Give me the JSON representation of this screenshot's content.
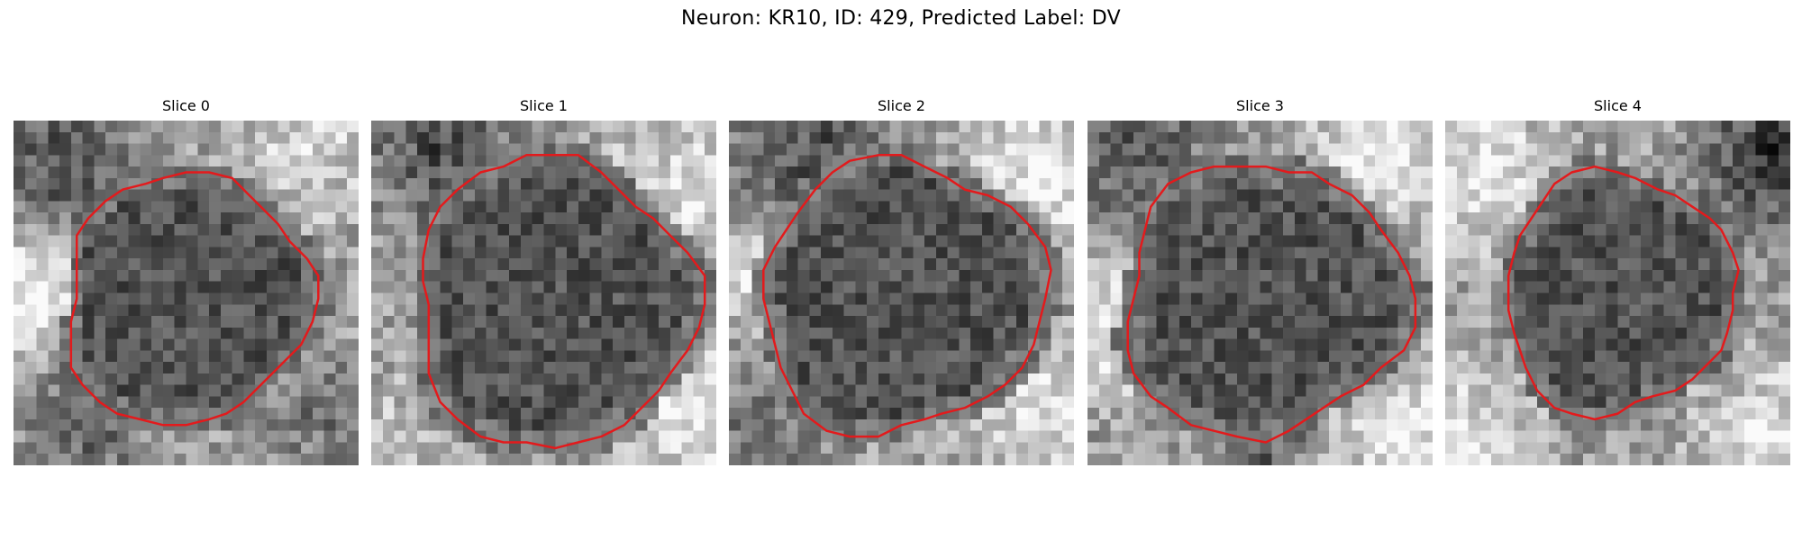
{
  "figure": {
    "title": "Neuron: KR10, ID: 429, Predicted Label: DV"
  },
  "panels": [
    {
      "title": "Slice 0"
    },
    {
      "title": "Slice 1"
    },
    {
      "title": "Slice 2"
    },
    {
      "title": "Slice 3"
    },
    {
      "title": "Slice 4"
    }
  ],
  "colors": {
    "contour": "#e31a1c",
    "background": "#ffffff"
  },
  "image_style": "grayscale pixelated microscopy tile with red cell contour"
}
